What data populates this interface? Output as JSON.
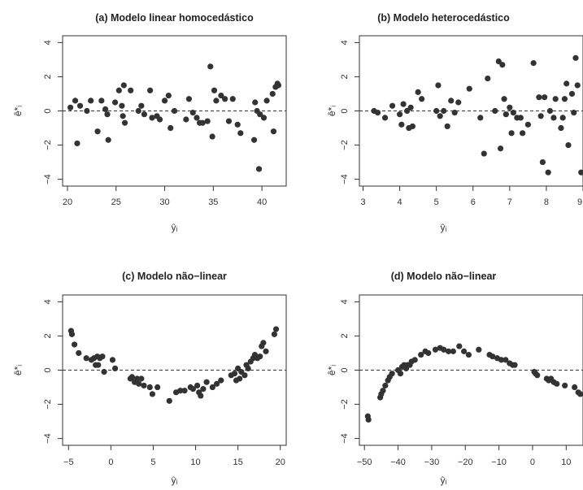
{
  "chart_data": [
    {
      "type": "scatter",
      "title": "(a) Modelo linear homocedástico",
      "xlabel": "ŷᵢ",
      "ylabel": "ê*ᵢ",
      "xlim": [
        19.5,
        42.5
      ],
      "ylim": [
        -4.4,
        4.4
      ],
      "xticks": [
        20,
        25,
        30,
        35,
        40
      ],
      "yticks": [
        -4,
        -2,
        0,
        2,
        4
      ],
      "reference_line_y": 0,
      "points": [
        [
          20.3,
          0.2
        ],
        [
          20.8,
          0.6
        ],
        [
          21.0,
          -1.9
        ],
        [
          21.3,
          0.3
        ],
        [
          22.0,
          0.0
        ],
        [
          22.4,
          0.6
        ],
        [
          23.1,
          -1.2
        ],
        [
          23.5,
          0.6
        ],
        [
          23.9,
          0.1
        ],
        [
          24.1,
          -0.2
        ],
        [
          24.2,
          -1.7
        ],
        [
          24.9,
          0.5
        ],
        [
          25.3,
          1.2
        ],
        [
          25.6,
          0.3
        ],
        [
          25.7,
          -0.3
        ],
        [
          25.8,
          1.5
        ],
        [
          25.9,
          -0.7
        ],
        [
          26.5,
          1.2
        ],
        [
          27.3,
          0.0
        ],
        [
          27.6,
          0.3
        ],
        [
          27.9,
          -0.2
        ],
        [
          28.5,
          1.2
        ],
        [
          28.7,
          -0.4
        ],
        [
          29.2,
          -0.3
        ],
        [
          29.5,
          -0.5
        ],
        [
          30.0,
          0.6
        ],
        [
          30.4,
          0.9
        ],
        [
          30.6,
          -1.0
        ],
        [
          31.0,
          0.0
        ],
        [
          32.2,
          -0.5
        ],
        [
          32.5,
          0.7
        ],
        [
          32.9,
          -0.1
        ],
        [
          33.3,
          -0.4
        ],
        [
          33.6,
          -0.7
        ],
        [
          33.9,
          -0.7
        ],
        [
          34.4,
          -0.6
        ],
        [
          34.7,
          2.6
        ],
        [
          34.9,
          -1.5
        ],
        [
          35.1,
          1.2
        ],
        [
          35.3,
          0.6
        ],
        [
          35.8,
          0.9
        ],
        [
          36.2,
          0.7
        ],
        [
          36.6,
          -0.6
        ],
        [
          37.0,
          0.7
        ],
        [
          37.5,
          -0.8
        ],
        [
          37.8,
          -1.3
        ],
        [
          39.2,
          -1.7
        ],
        [
          39.3,
          0.5
        ],
        [
          39.5,
          0.0
        ],
        [
          39.7,
          -3.4
        ],
        [
          39.8,
          -0.2
        ],
        [
          40.2,
          -0.4
        ],
        [
          40.5,
          0.6
        ],
        [
          41.1,
          1.0
        ],
        [
          41.2,
          -1.2
        ],
        [
          41.4,
          1.4
        ],
        [
          41.6,
          1.6
        ],
        [
          41.7,
          1.5
        ]
      ]
    },
    {
      "type": "scatter",
      "title": "(b) Modelo heterocedástico",
      "xlabel": "ŷᵢ",
      "ylabel": "ê*ᵢ",
      "xlim": [
        2.9,
        9.0
      ],
      "ylim": [
        -4.4,
        4.4
      ],
      "xticks": [
        3,
        4,
        5,
        6,
        7,
        8,
        9
      ],
      "yticks": [
        -4,
        -2,
        0,
        2,
        4
      ],
      "reference_line_y": 0,
      "points": [
        [
          3.3,
          0.0
        ],
        [
          3.4,
          -0.1
        ],
        [
          3.6,
          -0.4
        ],
        [
          3.8,
          0.3
        ],
        [
          4.0,
          -0.2
        ],
        [
          4.05,
          -0.8
        ],
        [
          4.1,
          0.4
        ],
        [
          4.2,
          0.0
        ],
        [
          4.25,
          -1.0
        ],
        [
          4.3,
          0.2
        ],
        [
          4.35,
          -0.9
        ],
        [
          4.5,
          1.1
        ],
        [
          4.6,
          0.7
        ],
        [
          5.0,
          0.0
        ],
        [
          5.05,
          1.5
        ],
        [
          5.1,
          -0.3
        ],
        [
          5.2,
          0.0
        ],
        [
          5.3,
          -0.9
        ],
        [
          5.4,
          0.6
        ],
        [
          5.5,
          -0.1
        ],
        [
          5.6,
          0.5
        ],
        [
          5.9,
          1.3
        ],
        [
          6.2,
          -0.4
        ],
        [
          6.3,
          -2.5
        ],
        [
          6.4,
          1.9
        ],
        [
          6.6,
          0.0
        ],
        [
          6.7,
          2.9
        ],
        [
          6.75,
          -2.2
        ],
        [
          6.8,
          2.7
        ],
        [
          6.85,
          0.7
        ],
        [
          6.9,
          -0.2
        ],
        [
          7.0,
          0.2
        ],
        [
          7.05,
          -1.3
        ],
        [
          7.1,
          -0.1
        ],
        [
          7.2,
          -0.4
        ],
        [
          7.3,
          -0.4
        ],
        [
          7.35,
          -1.3
        ],
        [
          7.5,
          -0.8
        ],
        [
          7.65,
          2.8
        ],
        [
          7.8,
          0.8
        ],
        [
          7.85,
          -0.3
        ],
        [
          7.9,
          -3.0
        ],
        [
          7.95,
          0.8
        ],
        [
          8.05,
          -3.6
        ],
        [
          8.1,
          0.0
        ],
        [
          8.2,
          -0.4
        ],
        [
          8.25,
          0.7
        ],
        [
          8.4,
          -1.0
        ],
        [
          8.45,
          -0.4
        ],
        [
          8.5,
          0.7
        ],
        [
          8.55,
          1.6
        ],
        [
          8.6,
          -2.0
        ],
        [
          8.7,
          1.0
        ],
        [
          8.75,
          -0.1
        ],
        [
          8.8,
          3.1
        ],
        [
          8.85,
          1.5
        ],
        [
          8.95,
          -3.6
        ],
        [
          9.0,
          0.8
        ]
      ]
    },
    {
      "type": "scatter",
      "title": "(c) Modelo não−linear",
      "xlabel": "ŷᵢ",
      "ylabel": "ê*ᵢ",
      "xlim": [
        -5.7,
        20.7
      ],
      "ylim": [
        -4.4,
        4.4
      ],
      "xticks": [
        -5,
        0,
        5,
        10,
        15,
        20
      ],
      "yticks": [
        -4,
        -2,
        0,
        2,
        4
      ],
      "reference_line_y": 0,
      "points": [
        [
          -4.7,
          2.3
        ],
        [
          -4.6,
          2.1
        ],
        [
          -4.3,
          1.5
        ],
        [
          -3.8,
          1.0
        ],
        [
          -2.9,
          0.7
        ],
        [
          -2.3,
          0.6
        ],
        [
          -2.0,
          0.7
        ],
        [
          -1.8,
          0.3
        ],
        [
          -1.6,
          0.8
        ],
        [
          -1.5,
          0.3
        ],
        [
          -1.3,
          0.7
        ],
        [
          -1.0,
          0.8
        ],
        [
          -0.8,
          -0.1
        ],
        [
          0.2,
          0.6
        ],
        [
          0.5,
          0.1
        ],
        [
          2.3,
          -0.5
        ],
        [
          2.5,
          -0.4
        ],
        [
          2.8,
          -0.7
        ],
        [
          3.1,
          -0.5
        ],
        [
          3.3,
          -0.8
        ],
        [
          3.6,
          -0.5
        ],
        [
          3.9,
          -0.9
        ],
        [
          4.6,
          -1.0
        ],
        [
          4.9,
          -1.4
        ],
        [
          5.5,
          -1.0
        ],
        [
          6.9,
          -1.8
        ],
        [
          7.7,
          -1.3
        ],
        [
          8.2,
          -1.2
        ],
        [
          8.7,
          -1.2
        ],
        [
          9.4,
          -1.0
        ],
        [
          9.7,
          -1.1
        ],
        [
          10.2,
          -0.9
        ],
        [
          10.4,
          -1.3
        ],
        [
          10.6,
          -1.5
        ],
        [
          10.9,
          -1.1
        ],
        [
          11.3,
          -0.7
        ],
        [
          12.0,
          -1.0
        ],
        [
          12.5,
          -0.8
        ],
        [
          13.0,
          -0.6
        ],
        [
          14.2,
          -0.3
        ],
        [
          14.6,
          -0.2
        ],
        [
          14.8,
          -0.6
        ],
        [
          15.0,
          0.1
        ],
        [
          15.2,
          -0.5
        ],
        [
          15.4,
          -0.1
        ],
        [
          15.8,
          -0.3
        ],
        [
          16.0,
          0.3
        ],
        [
          16.2,
          0.1
        ],
        [
          16.5,
          0.5
        ],
        [
          16.8,
          0.7
        ],
        [
          17.0,
          0.9
        ],
        [
          17.3,
          0.7
        ],
        [
          17.6,
          0.8
        ],
        [
          17.8,
          1.4
        ],
        [
          18.0,
          1.6
        ],
        [
          18.3,
          1.1
        ],
        [
          19.3,
          2.1
        ],
        [
          19.5,
          2.4
        ]
      ]
    },
    {
      "type": "scatter",
      "title": "(d) Modelo não−linear",
      "xlabel": "ŷᵢ",
      "ylabel": "ê*ᵢ",
      "xlim": [
        -51.5,
        15.0
      ],
      "ylim": [
        -4.4,
        4.4
      ],
      "xticks": [
        -50,
        -40,
        -30,
        -20,
        -10,
        0,
        10
      ],
      "yticks": [
        -4,
        -2,
        0,
        2,
        4
      ],
      "reference_line_y": 0,
      "points": [
        [
          -49.0,
          -2.7
        ],
        [
          -48.8,
          -2.9
        ],
        [
          -45.3,
          -1.6
        ],
        [
          -45.0,
          -1.4
        ],
        [
          -44.5,
          -1.2
        ],
        [
          -43.8,
          -0.9
        ],
        [
          -43.0,
          -0.6
        ],
        [
          -42.5,
          -0.4
        ],
        [
          -41.8,
          -0.2
        ],
        [
          -40.0,
          0.0
        ],
        [
          -39.3,
          -0.2
        ],
        [
          -38.8,
          0.2
        ],
        [
          -38.2,
          0.3
        ],
        [
          -37.6,
          0.1
        ],
        [
          -37.2,
          0.3
        ],
        [
          -36.5,
          0.3
        ],
        [
          -36.0,
          0.5
        ],
        [
          -35.0,
          0.6
        ],
        [
          -33.2,
          0.9
        ],
        [
          -31.9,
          1.1
        ],
        [
          -31.0,
          1.0
        ],
        [
          -28.9,
          1.2
        ],
        [
          -27.5,
          1.3
        ],
        [
          -26.4,
          1.2
        ],
        [
          -25.0,
          1.1
        ],
        [
          -23.6,
          1.1
        ],
        [
          -21.8,
          1.4
        ],
        [
          -20.4,
          1.1
        ],
        [
          -19.0,
          0.9
        ],
        [
          -16.0,
          1.2
        ],
        [
          -12.8,
          0.9
        ],
        [
          -11.9,
          0.8
        ],
        [
          -10.5,
          0.7
        ],
        [
          -9.3,
          0.6
        ],
        [
          -8.0,
          0.6
        ],
        [
          -6.8,
          0.4
        ],
        [
          -5.9,
          0.3
        ],
        [
          -5.3,
          0.3
        ],
        [
          0.5,
          -0.1
        ],
        [
          0.9,
          -0.2
        ],
        [
          1.4,
          -0.3
        ],
        [
          4.2,
          -0.5
        ],
        [
          4.8,
          -0.6
        ],
        [
          5.5,
          -0.5
        ],
        [
          6.3,
          -0.7
        ],
        [
          7.2,
          -0.8
        ],
        [
          9.6,
          -0.9
        ],
        [
          12.5,
          -1.0
        ],
        [
          13.6,
          -1.3
        ],
        [
          14.2,
          -1.4
        ],
        [
          14.7,
          -1.5
        ]
      ]
    }
  ]
}
